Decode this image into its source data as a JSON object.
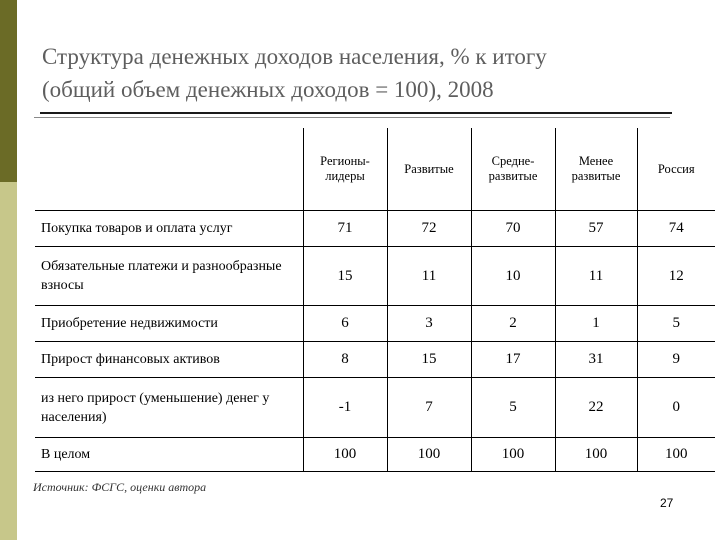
{
  "title_line1": "Структура денежных доходов населения, % к итогу",
  "title_line2": "(общий объем денежных доходов = 100), 2008",
  "table": {
    "headers": [
      "Регионы-лидеры",
      "Развитые",
      "Средне-развитые",
      "Менее развитые",
      "Россия"
    ],
    "rows": [
      {
        "label": "Покупка товаров и оплата услуг",
        "values": [
          "71",
          "72",
          "70",
          "57",
          "74"
        ]
      },
      {
        "label": "Обязательные платежи и разнообразные взносы",
        "values": [
          "15",
          "11",
          "10",
          "11",
          "12"
        ]
      },
      {
        "label": "Приобретение недвижимости",
        "values": [
          "6",
          "3",
          "2",
          "1",
          "5"
        ]
      },
      {
        "label": "Прирост финансовых активов",
        "values": [
          "8",
          "15",
          "17",
          "31",
          "9"
        ]
      },
      {
        "label": "из него прирост (уменьшение) денег у населения)",
        "values": [
          "-1",
          "7",
          "5",
          "22",
          "0"
        ]
      },
      {
        "label": "В целом",
        "values": [
          "100",
          "100",
          "100",
          "100",
          "100"
        ]
      }
    ]
  },
  "source": "Источник: ФСГС, оценки автора",
  "page_number": "27",
  "colors": {
    "sidebar_dark": "#6b6b26",
    "sidebar_light": "#c7c78a",
    "title": "#5e5e5e"
  }
}
